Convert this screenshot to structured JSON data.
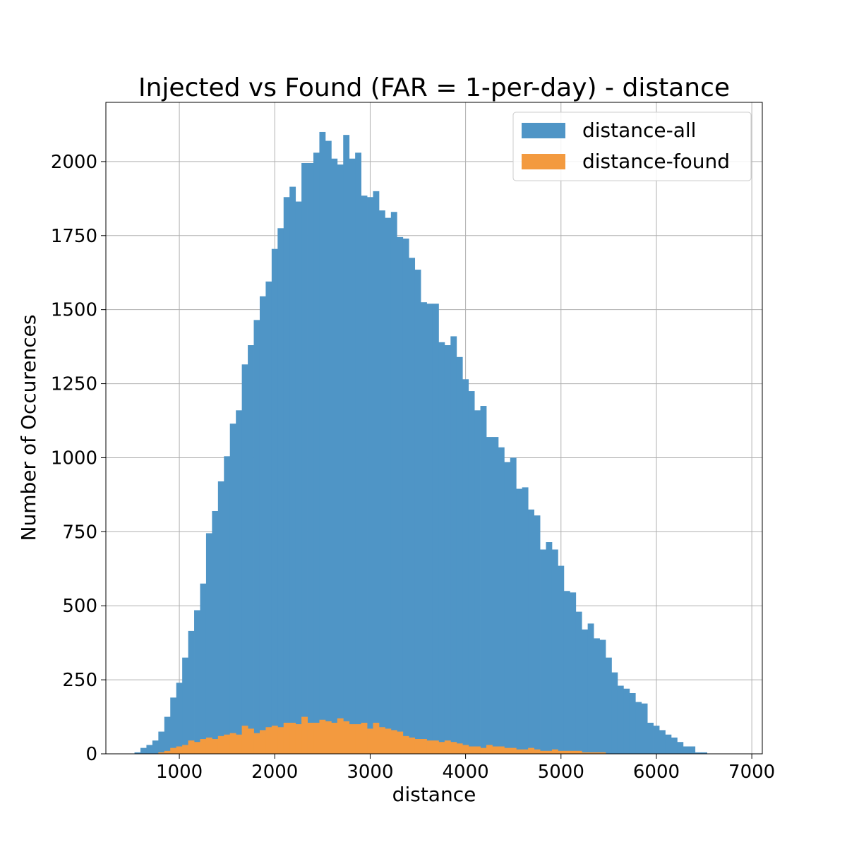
{
  "chart_data": {
    "type": "bar",
    "title": "Injected vs Found (FAR = 1-per-day) - distance",
    "xlabel": "distance",
    "ylabel": "Number of Occurences",
    "xlim": [
      230,
      7110
    ],
    "ylim": [
      0,
      2200
    ],
    "xticks": [
      1000,
      2000,
      3000,
      4000,
      5000,
      6000,
      7000
    ],
    "yticks": [
      0,
      250,
      500,
      750,
      1000,
      1250,
      1500,
      1750,
      2000
    ],
    "grid": true,
    "legend_position": "top-right",
    "bin_start": 530,
    "bin_width": 62.5,
    "series": [
      {
        "name": "distance-all",
        "color": "#4f95c6",
        "values": [
          5,
          20,
          30,
          45,
          75,
          125,
          190,
          240,
          325,
          415,
          485,
          575,
          745,
          820,
          920,
          1005,
          1115,
          1160,
          1315,
          1380,
          1465,
          1545,
          1595,
          1705,
          1775,
          1880,
          1915,
          1865,
          1995,
          1995,
          2030,
          2100,
          2070,
          2010,
          1990,
          2090,
          2010,
          2030,
          1885,
          1880,
          1900,
          1835,
          1810,
          1830,
          1745,
          1740,
          1675,
          1635,
          1525,
          1520,
          1520,
          1390,
          1380,
          1410,
          1340,
          1265,
          1225,
          1160,
          1175,
          1070,
          1070,
          1035,
          985,
          1000,
          895,
          900,
          825,
          805,
          690,
          715,
          690,
          635,
          550,
          545,
          480,
          420,
          440,
          390,
          385,
          325,
          275,
          230,
          220,
          205,
          175,
          170,
          105,
          95,
          80,
          65,
          55,
          40,
          25,
          25,
          5,
          5
        ]
      },
      {
        "name": "distance-found",
        "color": "#f39a3f",
        "values": [
          0,
          0,
          0,
          0,
          5,
          10,
          20,
          25,
          30,
          45,
          40,
          50,
          55,
          50,
          60,
          65,
          70,
          65,
          95,
          85,
          70,
          80,
          90,
          95,
          90,
          105,
          105,
          100,
          125,
          105,
          105,
          115,
          110,
          105,
          120,
          110,
          100,
          100,
          105,
          85,
          105,
          90,
          85,
          80,
          75,
          60,
          55,
          50,
          50,
          45,
          45,
          40,
          45,
          40,
          35,
          30,
          25,
          25,
          20,
          30,
          25,
          25,
          20,
          20,
          15,
          15,
          20,
          15,
          10,
          10,
          15,
          10,
          10,
          10,
          10,
          5,
          5,
          5,
          5,
          0,
          0,
          0,
          0,
          0,
          0,
          0,
          0,
          0,
          0,
          0,
          0,
          0,
          0,
          0,
          0,
          0
        ]
      }
    ]
  }
}
